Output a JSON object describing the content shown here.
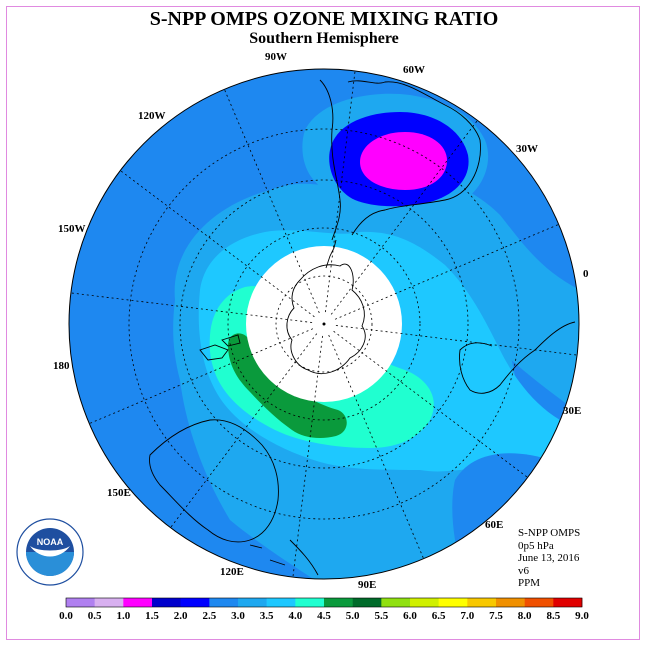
{
  "header": {
    "title": "S-NPP OMPS OZONE MIXING RATIO",
    "subtitle": "Southern Hemisphere"
  },
  "map": {
    "projection": "south polar stereographic",
    "longitude_labels": [
      "90W",
      "60W",
      "120W",
      "30W",
      "150W",
      "0",
      "180",
      "30E",
      "150E",
      "60E",
      "120E",
      "90E"
    ],
    "no_data_region": "polar cap (white)"
  },
  "info": {
    "instrument": "S-NPP OMPS",
    "level": "0p5 hPa",
    "date": "June 13, 2016",
    "version": "v6",
    "units": "PPM"
  },
  "colorbar": {
    "labels": [
      "0.0",
      "0.5",
      "1.0",
      "1.5",
      "2.0",
      "2.5",
      "3.0",
      "3.5",
      "4.0",
      "4.5",
      "5.0",
      "5.5",
      "6.0",
      "6.5",
      "7.0",
      "7.5",
      "8.0",
      "8.5",
      "9.0"
    ],
    "colors": [
      "#b080f0",
      "#d8b0f0",
      "#ff00ff",
      "#0000cc",
      "#0000ff",
      "#1e88f0",
      "#1ea8f0",
      "#1ec8ff",
      "#20ffd0",
      "#0a9a3c",
      "#006b2a",
      "#90e010",
      "#d0f000",
      "#ffff00",
      "#f8c800",
      "#f09000",
      "#f05000",
      "#e00000",
      "#7a5030"
    ]
  },
  "logo": {
    "text": "NOAA",
    "ring_text": "NATIONAL OCEANIC AND ATMOSPHERIC ADMINISTRATION U.S. DEPARTMENT OF COMMERCE"
  }
}
